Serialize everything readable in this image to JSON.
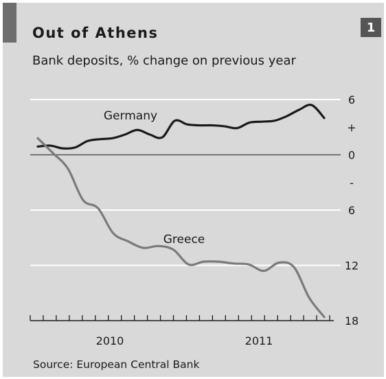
{
  "badge": "1",
  "chart_data": {
    "type": "line",
    "title": "Out of Athens",
    "subtitle": "Bank deposits, % change on previous year",
    "source": "Source: European Central Bank",
    "ylim": [
      -18,
      6
    ],
    "y_ticks": [
      {
        "value": 6,
        "label": "6"
      },
      {
        "value": 3,
        "label": "+"
      },
      {
        "value": 0,
        "label": "0"
      },
      {
        "value": -3,
        "label": "-"
      },
      {
        "value": -6,
        "label": "6"
      },
      {
        "value": -12,
        "label": "12"
      },
      {
        "value": -18,
        "label": "18"
      }
    ],
    "x_tick_count": 24,
    "x_labels": [
      "2010",
      "2011"
    ],
    "grid": true,
    "series": [
      {
        "name": "Germany",
        "color": "#1a1a1a",
        "values": [
          0.9,
          1.0,
          0.7,
          0.8,
          1.5,
          1.7,
          1.8,
          2.2,
          2.7,
          2.2,
          1.9,
          3.7,
          3.3,
          3.2,
          3.2,
          3.1,
          2.9,
          3.5,
          3.6,
          3.7,
          4.2,
          4.9,
          5.4,
          4.0
        ]
      },
      {
        "name": "Greece",
        "color": "#7a7a7a",
        "values": [
          1.8,
          0.2,
          -1.5,
          -4.9,
          -5.8,
          -8.5,
          -9.4,
          -10.1,
          -9.9,
          -10.3,
          -11.9,
          -11.6,
          -11.6,
          -11.8,
          -11.9,
          -12.6,
          -11.7,
          -12.2,
          -15.5,
          -17.6
        ]
      }
    ]
  }
}
